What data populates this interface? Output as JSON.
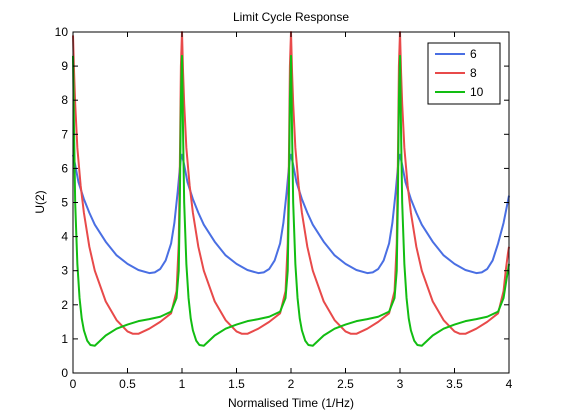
{
  "chart_data": {
    "type": "line",
    "title": "Limit Cycle Response",
    "xlabel": "Normalised Time (1/Hz)",
    "ylabel": "U(2)",
    "xlim": [
      0,
      4
    ],
    "ylim": [
      0,
      10
    ],
    "xticks": [
      "0",
      "0.5",
      "1",
      "1.5",
      "2",
      "2.5",
      "3",
      "3.5",
      "4"
    ],
    "yticks": [
      "0",
      "1",
      "2",
      "3",
      "4",
      "5",
      "6",
      "7",
      "8",
      "9",
      "10"
    ],
    "grid": false,
    "legend_position": "top-right",
    "series": [
      {
        "name": "6",
        "color": "#4a6fe3",
        "x": [
          0,
          0.02,
          0.05,
          0.1,
          0.15,
          0.2,
          0.3,
          0.4,
          0.5,
          0.6,
          0.7,
          0.75,
          0.8,
          0.85,
          0.9,
          0.93,
          0.96,
          0.98,
          0.99,
          1.0,
          1.02,
          1.05,
          1.1,
          1.15,
          1.2,
          1.3,
          1.4,
          1.5,
          1.6,
          1.7,
          1.75,
          1.8,
          1.85,
          1.9,
          1.93,
          1.96,
          1.98,
          1.99,
          2.0,
          2.02,
          2.05,
          2.1,
          2.15,
          2.2,
          2.3,
          2.4,
          2.5,
          2.6,
          2.7,
          2.75,
          2.8,
          2.85,
          2.9,
          2.93,
          2.96,
          2.98,
          2.99,
          3.0,
          3.02,
          3.05,
          3.1,
          3.15,
          3.2,
          3.3,
          3.4,
          3.5,
          3.6,
          3.7,
          3.75,
          3.8,
          3.85,
          3.9,
          3.95,
          4.0
        ],
        "y": [
          6.4,
          6.1,
          5.6,
          5.1,
          4.7,
          4.35,
          3.85,
          3.45,
          3.2,
          3.02,
          2.93,
          2.95,
          3.05,
          3.3,
          3.8,
          4.4,
          5.3,
          6.0,
          6.3,
          6.4,
          6.1,
          5.6,
          5.1,
          4.7,
          4.35,
          3.85,
          3.45,
          3.2,
          3.02,
          2.93,
          2.95,
          3.05,
          3.3,
          3.8,
          4.4,
          5.3,
          6.0,
          6.3,
          6.4,
          6.1,
          5.6,
          5.1,
          4.7,
          4.35,
          3.85,
          3.45,
          3.2,
          3.02,
          2.93,
          2.95,
          3.05,
          3.3,
          3.8,
          4.4,
          5.3,
          6.0,
          6.3,
          6.4,
          6.1,
          5.6,
          5.1,
          4.7,
          4.35,
          3.85,
          3.45,
          3.2,
          3.02,
          2.93,
          2.95,
          3.05,
          3.3,
          3.8,
          4.4,
          5.2
        ]
      },
      {
        "name": "8",
        "color": "#e84a4a",
        "x": [
          0,
          0.01,
          0.02,
          0.04,
          0.07,
          0.1,
          0.15,
          0.2,
          0.3,
          0.4,
          0.5,
          0.55,
          0.6,
          0.7,
          0.8,
          0.9,
          0.95,
          0.97,
          0.98,
          0.99,
          1.0,
          1.01,
          1.02,
          1.04,
          1.07,
          1.1,
          1.15,
          1.2,
          1.3,
          1.4,
          1.5,
          1.55,
          1.6,
          1.7,
          1.8,
          1.9,
          1.95,
          1.97,
          1.98,
          1.99,
          2.0,
          2.01,
          2.02,
          2.04,
          2.07,
          2.1,
          2.15,
          2.2,
          2.3,
          2.4,
          2.5,
          2.55,
          2.6,
          2.7,
          2.8,
          2.9,
          2.95,
          2.97,
          2.98,
          2.99,
          3.0,
          3.01,
          3.02,
          3.04,
          3.07,
          3.1,
          3.15,
          3.2,
          3.3,
          3.4,
          3.5,
          3.55,
          3.6,
          3.7,
          3.8,
          3.9,
          3.95,
          3.97,
          3.99,
          4.0
        ],
        "y": [
          9.9,
          8.8,
          7.9,
          6.6,
          5.5,
          4.7,
          3.7,
          3.0,
          2.1,
          1.55,
          1.22,
          1.15,
          1.15,
          1.3,
          1.5,
          1.75,
          2.4,
          3.8,
          6.0,
          9.0,
          10.0,
          8.8,
          7.9,
          6.6,
          5.5,
          4.7,
          3.7,
          3.0,
          2.1,
          1.55,
          1.22,
          1.15,
          1.15,
          1.3,
          1.5,
          1.75,
          2.4,
          3.8,
          6.0,
          9.0,
          10.0,
          8.8,
          7.9,
          6.6,
          5.5,
          4.7,
          3.7,
          3.0,
          2.1,
          1.55,
          1.22,
          1.15,
          1.15,
          1.3,
          1.5,
          1.75,
          2.4,
          3.8,
          6.0,
          9.0,
          10.0,
          8.8,
          7.9,
          6.6,
          5.5,
          4.7,
          3.7,
          3.0,
          2.1,
          1.55,
          1.22,
          1.15,
          1.15,
          1.3,
          1.5,
          1.75,
          2.4,
          3.0,
          3.5,
          3.7
        ]
      },
      {
        "name": "10",
        "color": "#12bd12",
        "x": [
          0,
          0.01,
          0.02,
          0.04,
          0.06,
          0.08,
          0.1,
          0.13,
          0.16,
          0.2,
          0.25,
          0.3,
          0.4,
          0.5,
          0.6,
          0.7,
          0.8,
          0.9,
          0.95,
          0.97,
          0.98,
          0.99,
          1.0,
          1.01,
          1.02,
          1.04,
          1.06,
          1.08,
          1.1,
          1.13,
          1.16,
          1.2,
          1.25,
          1.3,
          1.4,
          1.5,
          1.6,
          1.7,
          1.8,
          1.9,
          1.95,
          1.97,
          1.98,
          1.99,
          2.0,
          2.01,
          2.02,
          2.04,
          2.06,
          2.08,
          2.1,
          2.13,
          2.16,
          2.2,
          2.25,
          2.3,
          2.4,
          2.5,
          2.6,
          2.7,
          2.8,
          2.9,
          2.95,
          2.97,
          2.98,
          2.99,
          3.0,
          3.01,
          3.02,
          3.04,
          3.06,
          3.08,
          3.1,
          3.13,
          3.16,
          3.2,
          3.25,
          3.3,
          3.4,
          3.5,
          3.6,
          3.7,
          3.8,
          3.9,
          3.95,
          3.97,
          3.99,
          4.0
        ],
        "y": [
          9.3,
          7.0,
          5.0,
          3.2,
          2.2,
          1.6,
          1.25,
          0.95,
          0.82,
          0.8,
          0.95,
          1.1,
          1.3,
          1.42,
          1.52,
          1.58,
          1.65,
          1.8,
          2.2,
          3.0,
          5.0,
          8.0,
          9.3,
          7.0,
          5.0,
          3.2,
          2.2,
          1.6,
          1.25,
          0.95,
          0.82,
          0.8,
          0.95,
          1.1,
          1.3,
          1.42,
          1.52,
          1.58,
          1.65,
          1.8,
          2.2,
          3.0,
          5.0,
          8.0,
          9.3,
          7.0,
          5.0,
          3.2,
          2.2,
          1.6,
          1.25,
          0.95,
          0.82,
          0.8,
          0.95,
          1.1,
          1.3,
          1.42,
          1.52,
          1.58,
          1.65,
          1.8,
          2.2,
          3.0,
          5.0,
          8.0,
          9.3,
          7.0,
          5.0,
          3.2,
          2.2,
          1.6,
          1.25,
          0.95,
          0.82,
          0.8,
          0.95,
          1.1,
          1.3,
          1.42,
          1.52,
          1.58,
          1.65,
          1.8,
          2.2,
          2.6,
          3.0,
          3.2
        ]
      }
    ]
  }
}
